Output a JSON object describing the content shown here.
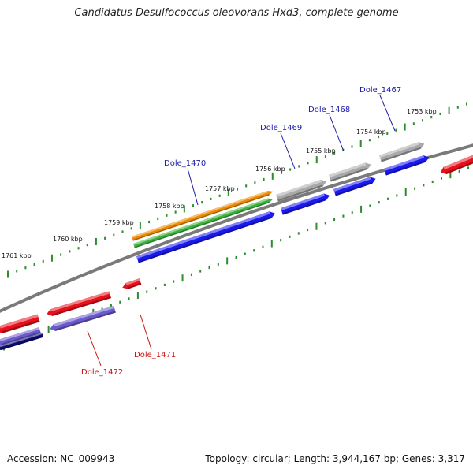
{
  "title": "Candidatus Desulfococcus oleovorans Hxd3, complete genome",
  "footer": {
    "accession": "Accession: NC_009943",
    "summary": "Topology: circular; Length: 3,944,167 bp; Genes: 3,317"
  },
  "kbp_labels": [
    "1761 kbp",
    "1760 kbp",
    "1759 kbp",
    "1758 kbp",
    "1757 kbp",
    "1756 kbp",
    "1755 kbp",
    "1754 kbp",
    "1753 kbp"
  ],
  "gene_labels": {
    "top": [
      "Dole_1470",
      "Dole_1469",
      "Dole_1468",
      "Dole_1467"
    ],
    "bottom": [
      "Dole_1472",
      "Dole_1471"
    ]
  },
  "colors": {
    "backbone": "#7a7a7a",
    "cds": "#1a1aee",
    "gene": "#a9a9a9",
    "rev_feature": "#e8101a",
    "misc_orange": "#ee8a00",
    "misc_green": "#3cb23c",
    "rev_purple": "#6a5acd",
    "rev_navy": "#0b0b6e",
    "forward_label": "#1a1aaa",
    "reverse_label": "#cc1111",
    "tick": "#2e8b2e"
  }
}
